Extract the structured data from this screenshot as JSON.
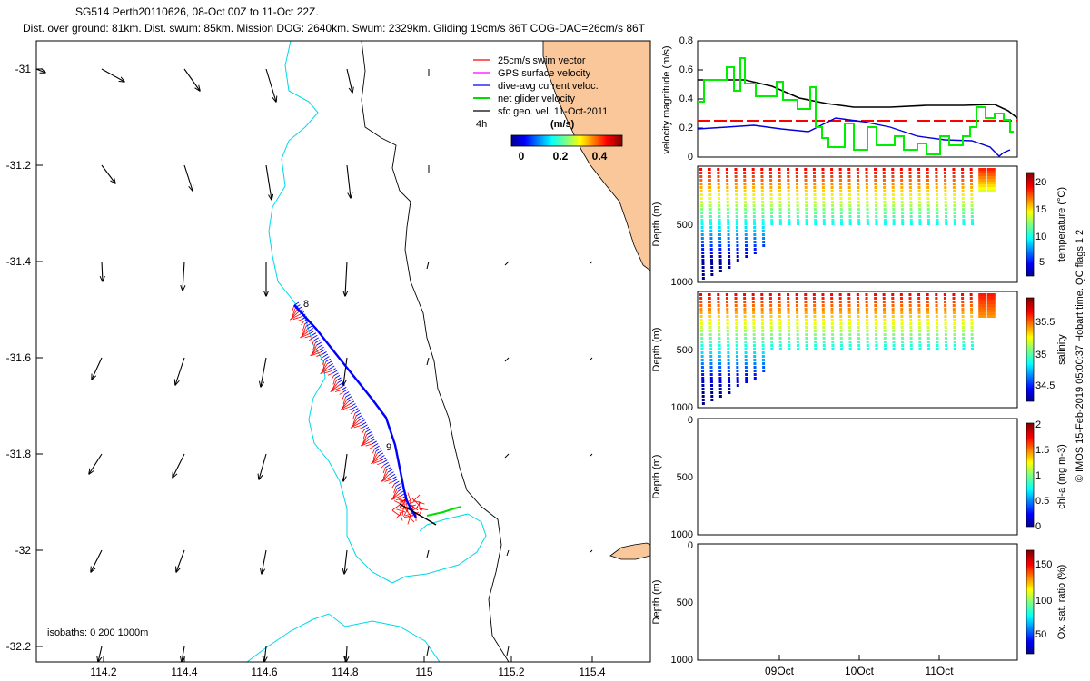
{
  "header": {
    "line1": "SG514 Perth20110626, 08-Oct 00Z to 11-Oct 22Z.",
    "line2": "Dist. over ground: 81km. Dist. swum: 85km. Mission DOG: 2640km. Swum: 2329km. Gliding 19cm/s 86T COG-DAC=26cm/s 86T"
  },
  "map": {
    "xticks": [
      "114.2",
      "114.4",
      "114.6",
      "114.8",
      "115",
      "115.2",
      "115.4"
    ],
    "yticks": [
      "-31",
      "-31.2",
      "-31.4",
      "-31.6",
      "-31.8",
      "-32",
      "-32.2"
    ],
    "legend": [
      {
        "label": "25cm/s swim vector",
        "color": "#ff0000"
      },
      {
        "label": "GPS surface velocity",
        "color": "#ff00ff"
      },
      {
        "label": "dive-avg current veloc.",
        "color": "#0000ff"
      },
      {
        "label": "net glider velocity",
        "color": "#00dd00"
      },
      {
        "label": "sfc geo. vel. 11-Oct-2011",
        "color": "#000000"
      }
    ],
    "scale_text": "4h",
    "colorbar_units": "(m/s)",
    "colorbar_ticks": [
      "0",
      "0.2",
      "0.4"
    ],
    "track_labels": [
      "8",
      "9"
    ],
    "isobaths_text": "isobaths: 0   200  1000m",
    "colors": {
      "land": "#f9c79a",
      "isobath_200": "#00d8e8",
      "coast": "#000000"
    }
  },
  "panels": {
    "velocity": {
      "ylabel": "velocity magnitude (m/s)",
      "yticks": [
        "0",
        "0.2",
        "0.4",
        "0.6",
        "0.8"
      ]
    },
    "depth_ticks": [
      "0",
      "500",
      "1000"
    ],
    "temperature": {
      "ylabel": "Depth (m)",
      "cbar_label": "temperature (°C)",
      "cbar_ticks": [
        "5",
        "10",
        "15",
        "20"
      ]
    },
    "salinity": {
      "ylabel": "Depth (m)",
      "cbar_label": "salinity",
      "cbar_ticks": [
        "34.5",
        "35",
        "35.5"
      ]
    },
    "chla": {
      "ylabel": "Depth (m)",
      "cbar_label": "chl-a (mg m-3)",
      "cbar_ticks": [
        "0",
        "0.5",
        "1",
        "1.5",
        "2"
      ]
    },
    "oxygen": {
      "ylabel": "Depth (m)",
      "cbar_label": "Ox. sat. ratio (%)",
      "cbar_ticks": [
        "50",
        "100",
        "150"
      ]
    },
    "time_ticks": [
      "09Oct",
      "10Oct",
      "11Oct"
    ]
  },
  "footer": {
    "side_text": "© IMOS 15-Feb-2019 05:00:37 Hobart time. QC flags 1  2"
  }
}
